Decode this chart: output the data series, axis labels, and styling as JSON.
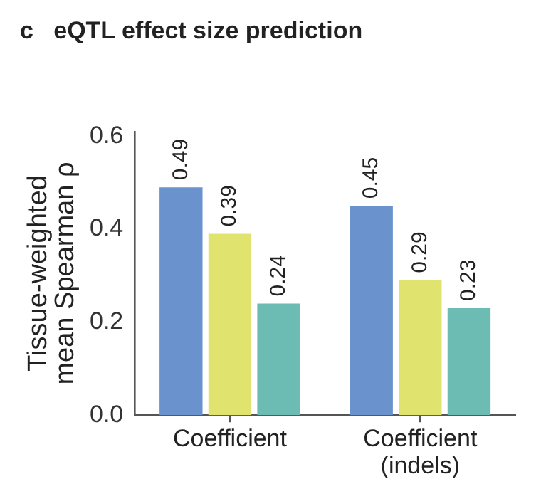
{
  "chart_data": {
    "type": "bar",
    "title": "c   eQTL effect size prediction",
    "ylabel": "Tissue-weighted\nmean Spearman ρ",
    "categories": [
      "Coefficient",
      "Coefficient\n(indels)"
    ],
    "series": [
      {
        "color": "#6a92cc",
        "values": [
          0.49,
          0.45
        ]
      },
      {
        "color": "#e0e46e",
        "values": [
          0.39,
          0.29
        ]
      },
      {
        "color": "#6dbcb4",
        "values": [
          0.24,
          0.23
        ]
      }
    ],
    "ylim": [
      0,
      0.61
    ],
    "yticks": [
      {
        "value": 0,
        "label": "0.0"
      },
      {
        "value": 0.2,
        "label": "0.2"
      },
      {
        "value": 0.4,
        "label": "0.4"
      },
      {
        "value": 0.6,
        "label": "0.6"
      }
    ],
    "grid": false,
    "legend": false,
    "data_labels": true
  }
}
